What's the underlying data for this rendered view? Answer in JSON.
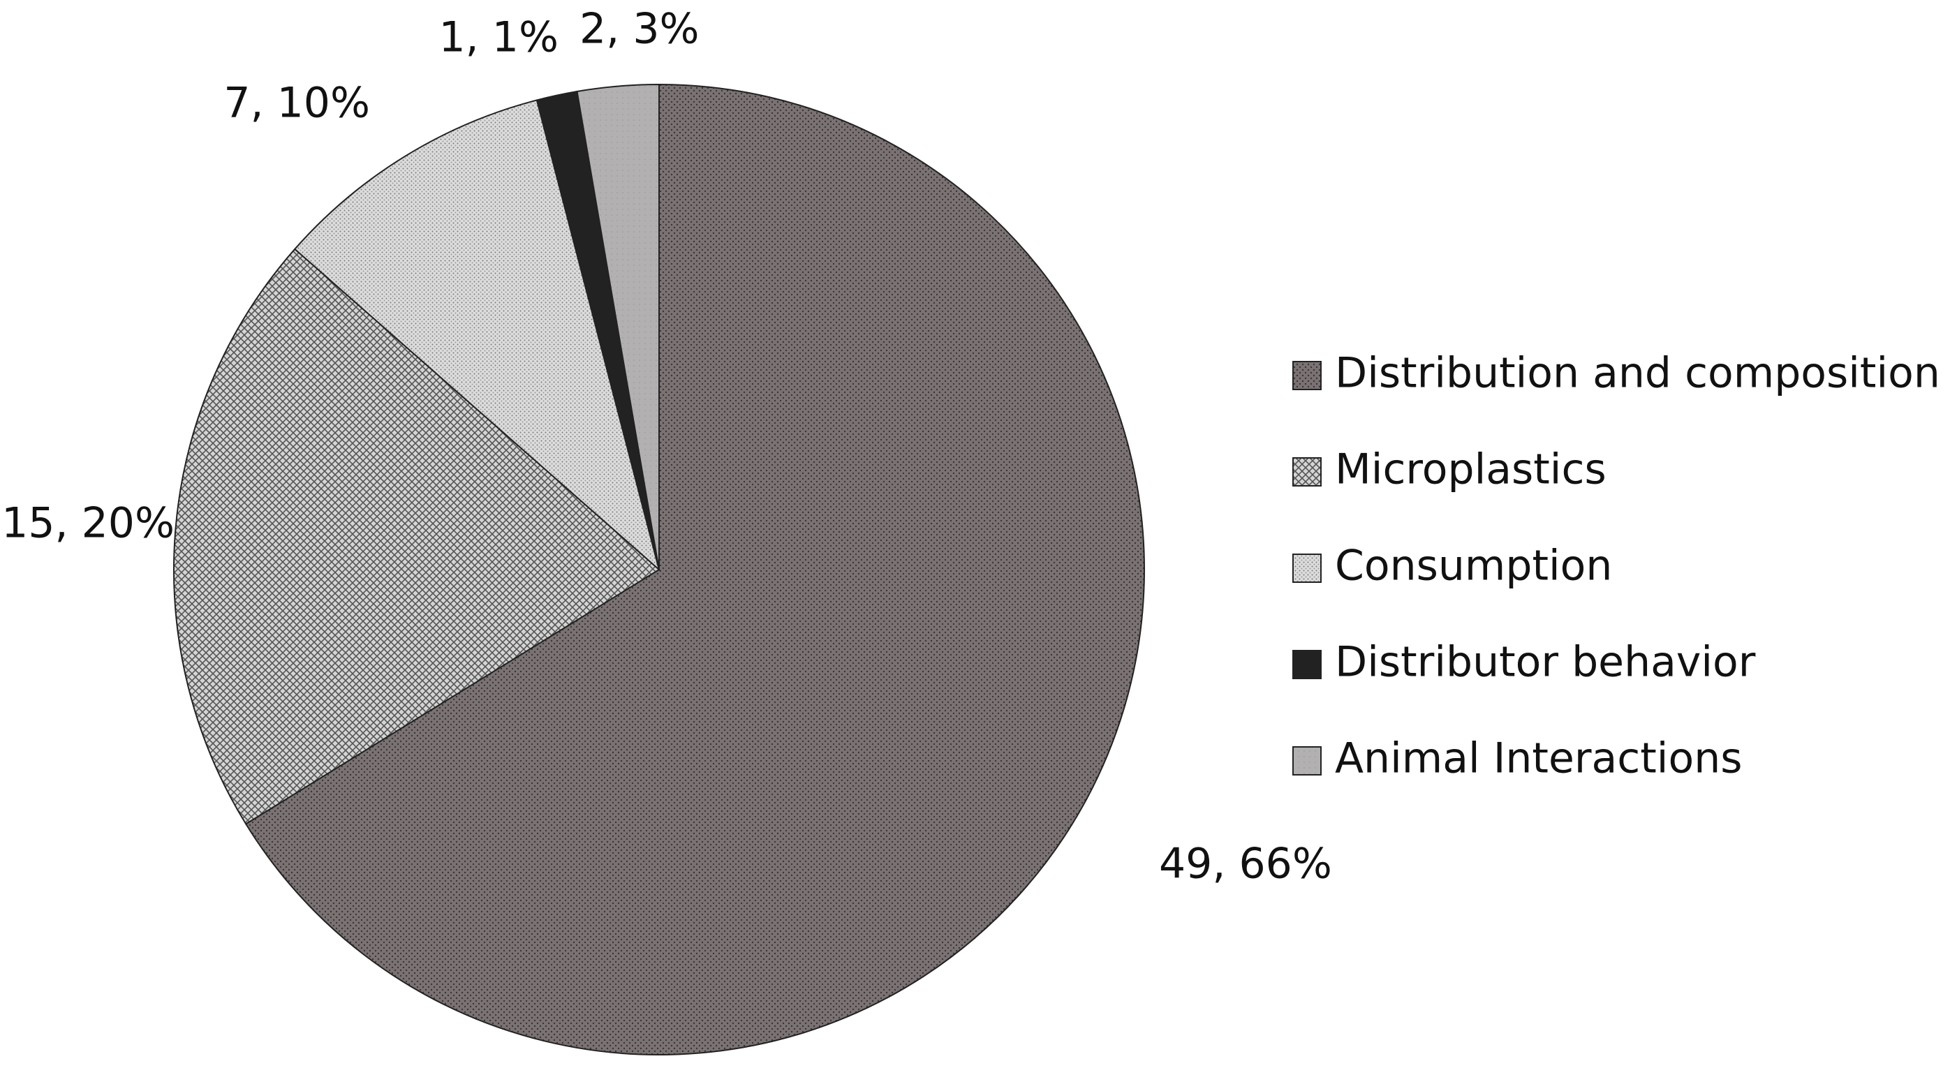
{
  "chart_data": {
    "type": "pie",
    "categories": [
      "Distribution and composition",
      "Microplastics",
      "Consumption",
      "Distributor behavior",
      "Animal Interactions"
    ],
    "values": [
      49,
      15,
      7,
      1,
      2
    ],
    "value_labels": [
      "49, 66%",
      "15, 20%",
      "7, 10%",
      "1, 1%",
      "2, 3%"
    ],
    "colors": [
      "#7b7373",
      "#d4d4d4",
      "#dcdcdc",
      "#222222",
      "#b2b0b0"
    ],
    "legend": "right"
  }
}
